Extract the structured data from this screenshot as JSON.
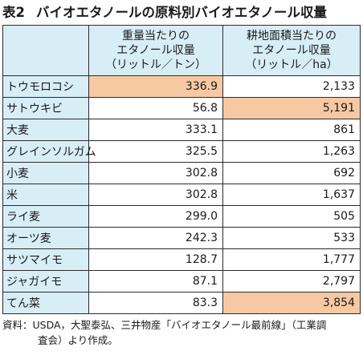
{
  "title": {
    "number": "表2",
    "text": "バイオエタノールの原料別バイオエタノール収量"
  },
  "table": {
    "header_blank": "",
    "col1": [
      "重量当たりの",
      "エタノール収量",
      "（リットル／トン）"
    ],
    "col2": [
      "耕地面積当たりの",
      "エタノール収量",
      "（リットル／ha）"
    ],
    "rows": [
      {
        "crop": "トウモロコシ",
        "per_ton": "336.9",
        "per_ha": "2,133",
        "highlight_ton": true,
        "highlight_ha": false
      },
      {
        "crop": "サトウキビ",
        "per_ton": "56.8",
        "per_ha": "5,191",
        "highlight_ton": false,
        "highlight_ha": true
      },
      {
        "crop": "大麦",
        "per_ton": "333.1",
        "per_ha": "861",
        "highlight_ton": false,
        "highlight_ha": false
      },
      {
        "crop": "グレインソルガム",
        "per_ton": "325.5",
        "per_ha": "1,263",
        "highlight_ton": false,
        "highlight_ha": false
      },
      {
        "crop": "小麦",
        "per_ton": "302.8",
        "per_ha": "692",
        "highlight_ton": false,
        "highlight_ha": false
      },
      {
        "crop": "米",
        "per_ton": "302.8",
        "per_ha": "1,637",
        "highlight_ton": false,
        "highlight_ha": false
      },
      {
        "crop": "ライ麦",
        "per_ton": "299.0",
        "per_ha": "505",
        "highlight_ton": false,
        "highlight_ha": false
      },
      {
        "crop": "オーツ麦",
        "per_ton": "242.3",
        "per_ha": "533",
        "highlight_ton": false,
        "highlight_ha": false
      },
      {
        "crop": "サツマイモ",
        "per_ton": "128.7",
        "per_ha": "1,777",
        "highlight_ton": false,
        "highlight_ha": false
      },
      {
        "crop": "ジャガイモ",
        "per_ton": "87.1",
        "per_ha": "2,797",
        "highlight_ton": false,
        "highlight_ha": false
      },
      {
        "crop": "てん菜",
        "per_ton": "83.3",
        "per_ha": "3,854",
        "highlight_ton": false,
        "highlight_ha": true
      }
    ]
  },
  "note": {
    "line1": "資料：USDA，大聖泰弘、三井物産「バイオエタノール最前線」（工業調",
    "line2": "査会）より作成。"
  },
  "colors": {
    "header_bg": "#d7eef7",
    "highlight_bg": "#f7c9a3",
    "border": "#2b2b2b"
  }
}
